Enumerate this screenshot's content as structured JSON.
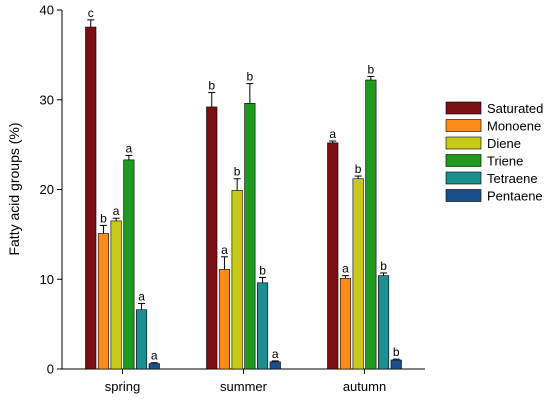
{
  "chart_data": {
    "type": "bar",
    "title": "",
    "xlabel": "",
    "ylabel": "Fatty acid groups (%)",
    "ylim": [
      0,
      40
    ],
    "yticks": [
      "0",
      "10",
      "20",
      "30",
      "40"
    ],
    "categories": [
      "spring",
      "summer",
      "autumn"
    ],
    "legend_position": "right",
    "series": [
      {
        "name": "Saturated",
        "color": "#7a0f14",
        "values": [
          38.1,
          29.2,
          25.2
        ],
        "errors": [
          0.8,
          1.6,
          0.2
        ],
        "letters": [
          "c",
          "b",
          "a"
        ]
      },
      {
        "name": "Monoene",
        "color": "#ff8c1a",
        "values": [
          15.1,
          11.1,
          10.1
        ],
        "errors": [
          0.9,
          1.4,
          0.3
        ],
        "letters": [
          "b",
          "a",
          "a"
        ]
      },
      {
        "name": "Diene",
        "color": "#c9c91a",
        "values": [
          16.5,
          19.9,
          21.2
        ],
        "errors": [
          0.3,
          1.3,
          0.3
        ],
        "letters": [
          "a",
          "b",
          "b"
        ]
      },
      {
        "name": "Triene",
        "color": "#1f9a1f",
        "values": [
          23.3,
          29.6,
          32.2
        ],
        "errors": [
          0.5,
          2.2,
          0.4
        ],
        "letters": [
          "a",
          "b",
          "b"
        ]
      },
      {
        "name": "Tetraene",
        "color": "#1e8f8f",
        "values": [
          6.6,
          9.6,
          10.4
        ],
        "errors": [
          0.7,
          0.6,
          0.3
        ],
        "letters": [
          "a",
          "b",
          "b"
        ]
      },
      {
        "name": "Pentaene",
        "color": "#1a4f8c",
        "values": [
          0.6,
          0.8,
          1.0
        ],
        "errors": [
          0.1,
          0.1,
          0.1
        ],
        "letters": [
          "a",
          "a",
          "b"
        ]
      }
    ]
  }
}
